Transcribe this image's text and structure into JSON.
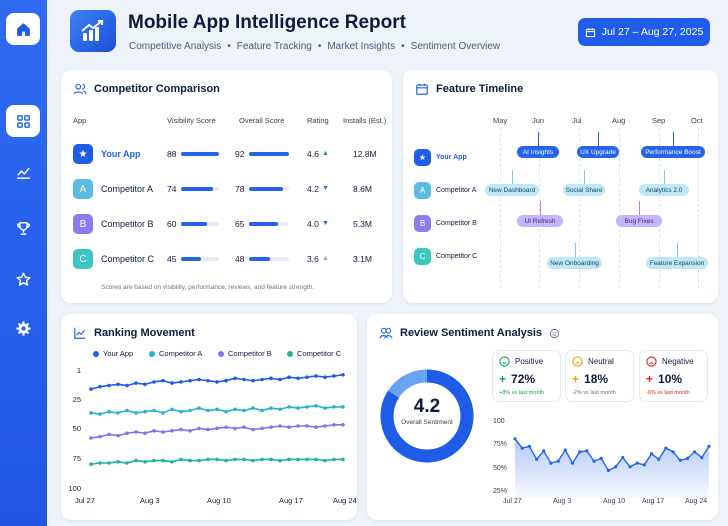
{
  "header": {
    "title": "Mobile App Intelligence Report",
    "subtitle_items": [
      "Competitive Analysis",
      "Feature Tracking",
      "Market Insights",
      "Sentiment Overview"
    ],
    "separator": "•",
    "date_range": "Jul 27 – Aug 27, 2025"
  },
  "sidebar": {
    "items": [
      {
        "icon": "home-icon",
        "active": false
      },
      {
        "icon": "grid-icon",
        "active": true
      },
      {
        "icon": "chart-line-icon",
        "active": false
      },
      {
        "icon": "trophy-icon",
        "active": false
      },
      {
        "icon": "star-icon",
        "active": false
      },
      {
        "icon": "gear-icon",
        "active": false
      }
    ]
  },
  "comparison": {
    "title": "Competitor Comparison",
    "headers": {
      "app": "App",
      "visibility": "Visibility Score",
      "overall": "Overall Score",
      "rating": "Rating",
      "installs": "Installs (Est.)"
    },
    "rows": [
      {
        "badge": "★",
        "name": "Your App",
        "visibility": "88",
        "overall": "92",
        "rating": "4.6",
        "trend": "▲",
        "installs": "12.8M",
        "color": "#1f5de8",
        "highlight": true
      },
      {
        "badge": "A",
        "name": "Competitor A",
        "visibility": "74",
        "overall": "78",
        "rating": "4.2",
        "trend": "▼",
        "installs": "8.6M",
        "color": "#5bbce0",
        "highlight": false
      },
      {
        "badge": "B",
        "name": "Competitor B",
        "visibility": "60",
        "overall": "65",
        "rating": "4.0",
        "trend": "▼",
        "installs": "5.3M",
        "color": "#8b7cf0",
        "highlight": false
      },
      {
        "badge": "C",
        "name": "Competitor C",
        "visibility": "45",
        "overall": "48",
        "rating": "3.6",
        "trend": "▲",
        "installs": "3.1M",
        "color": "#3cc6c2",
        "highlight": false
      }
    ],
    "footnote": "Scores are based on visibility, performance, reviews, and feature strength."
  },
  "timeline": {
    "title": "Feature Timeline",
    "months": [
      "May",
      "Jun",
      "Jul",
      "Aug",
      "Sep",
      "Oct"
    ],
    "rows": [
      {
        "badge": "★",
        "name": "Your App",
        "color": "#1f5de8",
        "highlight": true
      },
      {
        "badge": "A",
        "name": "Competitor A",
        "color": "#5bbce0",
        "highlight": false
      },
      {
        "badge": "B",
        "name": "Competitor B",
        "color": "#8b7cf0",
        "highlight": false
      },
      {
        "badge": "C",
        "name": "Competitor C",
        "color": "#3cc6c2",
        "highlight": false
      }
    ],
    "events": [
      {
        "label": "AI Insights",
        "style": "dark"
      },
      {
        "label": "UX Upgrade",
        "style": "dark"
      },
      {
        "label": "Performance Boost",
        "style": "dark"
      },
      {
        "label": "New Dashboard",
        "style": "light"
      },
      {
        "label": "Social Share",
        "style": "light"
      },
      {
        "label": "Analytics 2.0",
        "style": "light"
      },
      {
        "label": "UI Refresh",
        "style": "purple"
      },
      {
        "label": "Bug Fixes",
        "style": "purple"
      },
      {
        "label": "New Onboarding",
        "style": "light"
      },
      {
        "label": "Feature Expansion",
        "style": "light"
      }
    ]
  },
  "ranking": {
    "title": "Ranking Movement",
    "chart_data": {
      "type": "line",
      "x": [
        "Jul 27",
        "",
        "",
        "",
        "",
        "",
        "",
        "Aug 3",
        "",
        "",
        "",
        "",
        "",
        "",
        "Aug 10",
        "",
        "",
        "",
        "",
        "",
        "",
        "Aug 17",
        "",
        "",
        "",
        "",
        "",
        "",
        "Aug 24"
      ],
      "x_tick_labels": [
        "Jul 27",
        "Aug 3",
        "Aug 10",
        "Aug 17",
        "Aug 24"
      ],
      "y_tick_labels": [
        "1",
        "25",
        "50",
        "75",
        "100"
      ],
      "ylim": [
        1,
        100
      ],
      "y_inverted": true,
      "series": [
        {
          "name": "Your App",
          "color": "#1f5de8",
          "values": [
            17,
            15,
            14,
            13,
            14,
            12,
            13,
            11,
            10,
            12,
            11,
            10,
            9,
            10,
            11,
            10,
            8,
            9,
            10,
            9,
            8,
            9,
            7,
            8,
            7,
            6,
            7,
            6,
            5
          ]
        },
        {
          "name": "Competitor A",
          "color": "#27b3cf",
          "values": [
            37,
            38,
            36,
            37,
            35,
            37,
            36,
            35,
            37,
            34,
            36,
            35,
            33,
            35,
            34,
            36,
            34,
            35,
            33,
            35,
            33,
            34,
            32,
            33,
            32,
            31,
            33,
            32,
            32
          ]
        },
        {
          "name": "Competitor B",
          "color": "#8b6ff0",
          "values": [
            58,
            57,
            55,
            56,
            54,
            53,
            54,
            52,
            53,
            52,
            51,
            52,
            50,
            51,
            50,
            49,
            50,
            49,
            51,
            50,
            49,
            48,
            49,
            48,
            48,
            49,
            48,
            47,
            47
          ]
        },
        {
          "name": "Competitor C",
          "color": "#1fb39e",
          "values": [
            80,
            79,
            79,
            78,
            79,
            77,
            78,
            77,
            77,
            78,
            76,
            77,
            77,
            76,
            76,
            77,
            76,
            76,
            77,
            76,
            76,
            77,
            76,
            76,
            76,
            76,
            77,
            76,
            76
          ]
        }
      ]
    }
  },
  "sentiment": {
    "title": "Review Sentiment Analysis",
    "overall_value": "4.2",
    "overall_label": "Overall Sentiment",
    "donut_fraction": 0.84,
    "boxes": [
      {
        "label": "Positive",
        "value": "72%",
        "arrow": "+",
        "delta": "+8% vs last month",
        "color": "#16a34a"
      },
      {
        "label": "Neutral",
        "value": "18%",
        "arrow": "+",
        "delta": "-2% vs last month",
        "color": "#f59e0b"
      },
      {
        "label": "Negative",
        "value": "10%",
        "arrow": "+",
        "delta": "-6% vs last month",
        "color": "#dc2626"
      }
    ],
    "chart_data": {
      "type": "area",
      "x_tick_labels": [
        "Jul 27",
        "Aug 3",
        "Aug 10",
        "Aug 17",
        "Aug 24"
      ],
      "y_tick_labels": [
        "100",
        "75%",
        "50%",
        "25%"
      ],
      "values": [
        82,
        72,
        74,
        60,
        69,
        56,
        58,
        70,
        56,
        68,
        69,
        58,
        61,
        48,
        52,
        62,
        52,
        56,
        54,
        66,
        60,
        72,
        68,
        59,
        61,
        68,
        62,
        74
      ]
    }
  }
}
